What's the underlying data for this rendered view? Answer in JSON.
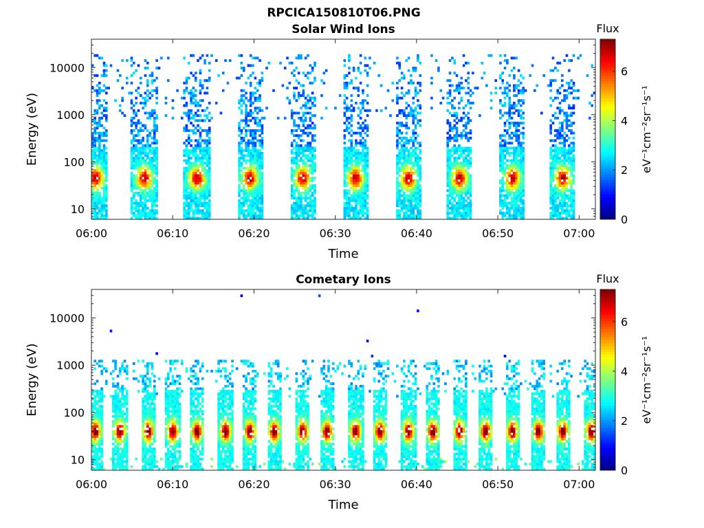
{
  "figure_title": "RPCICA150810T06.PNG",
  "chart_data": [
    {
      "type": "heatmap",
      "title": "Solar Wind Ions",
      "xlabel": "Time",
      "ylabel": "Energy (eV)",
      "x_ticks": [
        "06:00",
        "06:10",
        "06:20",
        "06:30",
        "06:40",
        "06:50",
        "07:00"
      ],
      "xlim": [
        "06:00",
        "07:02"
      ],
      "y_ticks": [
        "10",
        "100",
        "1000",
        "10000"
      ],
      "ylim": [
        6,
        40000
      ],
      "y_scale": "log",
      "colorbar": {
        "title": "Flux",
        "label": "eV⁻¹cm⁻²sr⁻¹s⁻¹",
        "ticks": [
          "0",
          "2",
          "4",
          "6"
        ],
        "range": [
          0,
          7.3
        ],
        "colormap": "jet"
      },
      "burst_times_min": [
        0.5,
        6.5,
        13,
        19.5,
        26,
        32.5,
        39,
        45.3,
        51.8,
        58
      ],
      "peak_energy_eV": 45,
      "peak_flux": 6.5
    },
    {
      "type": "heatmap",
      "title": "Cometary Ions",
      "xlabel": "Time",
      "ylabel": "Energy (eV)",
      "x_ticks": [
        "06:00",
        "06:10",
        "06:20",
        "06:30",
        "06:40",
        "06:50",
        "07:00"
      ],
      "xlim": [
        "06:00",
        "07:02"
      ],
      "y_ticks": [
        "10",
        "100",
        "1000",
        "10000"
      ],
      "ylim": [
        6,
        40000
      ],
      "y_scale": "log",
      "colorbar": {
        "title": "Flux",
        "label": "eV⁻¹cm⁻²sr⁻¹s⁻¹",
        "ticks": [
          "0",
          "2",
          "4",
          "6"
        ],
        "range": [
          0,
          7.3
        ],
        "colormap": "jet"
      },
      "burst_times_min": [
        0.5,
        3.5,
        7,
        10,
        13,
        16.5,
        19.5,
        22.5,
        26,
        29,
        32.5,
        35.5,
        39,
        42,
        45.3,
        48.5,
        51.8,
        55,
        58,
        61.5
      ],
      "peak_energy_eV": 40,
      "peak_flux": 7
    }
  ]
}
